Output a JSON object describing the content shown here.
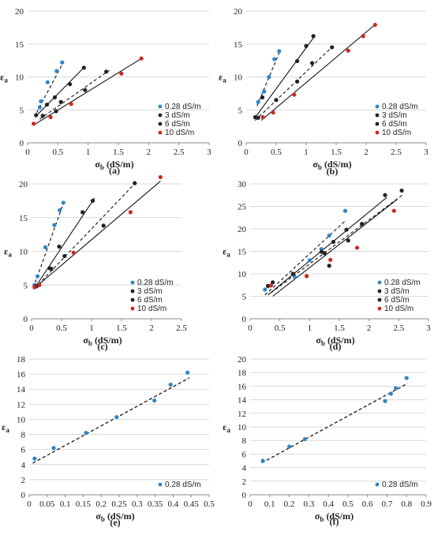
{
  "legend_values": {
    "a": "0.28 dS/m",
    "b": "3 dS/m",
    "c": "6 dS/m",
    "d": "10 dS/m",
    "c3": "3  dS/m",
    "c6": "6  dS/m",
    "c10": "10  dS/m"
  },
  "colors": {
    "s028": "#2e86c8",
    "s3": "#222222",
    "s6": "#222222",
    "s10": "#cc2a1e"
  },
  "chart_data": [
    {
      "panel": "(a)",
      "type": "scatter",
      "xlabel": "σb (dS/m)",
      "ylabel": "εa",
      "xlim": [
        0,
        3
      ],
      "ylim": [
        0,
        20
      ],
      "xticks": [
        0,
        0.5,
        1,
        1.5,
        2,
        2.5,
        3
      ],
      "yticks": [
        0,
        5,
        10,
        15,
        20
      ],
      "legend": "bottom-right",
      "series": [
        {
          "name": "0.28 dS/m",
          "color": "#2e86c8",
          "dash": "4,3",
          "points": [
            [
              0.2,
              5.4
            ],
            [
              0.22,
              6.3
            ],
            [
              0.33,
              9.2
            ],
            [
              0.48,
              10.9
            ],
            [
              0.57,
              12.2
            ]
          ],
          "fit": [
            [
              0.15,
              4.6
            ],
            [
              0.6,
              12.4
            ]
          ]
        },
        {
          "name": "3 dS/m",
          "color": "#222222",
          "dash": "",
          "points": [
            [
              0.14,
              4.2
            ],
            [
              0.32,
              5.8
            ],
            [
              0.45,
              6.9
            ],
            [
              0.7,
              8.9
            ],
            [
              0.93,
              11.4
            ]
          ],
          "fit": [
            [
              0.12,
              3.9
            ],
            [
              0.95,
              11.6
            ]
          ]
        },
        {
          "name": "6 dS/m",
          "color": "#222222",
          "dash": "4,3",
          "points": [
            [
              0.25,
              4.1
            ],
            [
              0.47,
              4.8
            ],
            [
              0.55,
              6.2
            ],
            [
              0.95,
              8.0
            ],
            [
              1.3,
              10.8
            ]
          ],
          "fit": [
            [
              0.2,
              3.6
            ],
            [
              1.35,
              11.0
            ]
          ]
        },
        {
          "name": "10 dS/m",
          "color": "#cc2a1e",
          "dash": "",
          "points": [
            [
              0.1,
              2.9
            ],
            [
              0.38,
              3.9
            ],
            [
              0.72,
              5.9
            ],
            [
              1.55,
              10.5
            ],
            [
              1.88,
              12.8
            ]
          ],
          "fit": [
            [
              0.1,
              2.7
            ],
            [
              1.9,
              12.9
            ]
          ]
        }
      ]
    },
    {
      "panel": "(b)",
      "type": "scatter",
      "xlabel": "σb (dS/m)",
      "ylabel": "εa",
      "xlim": [
        0,
        3
      ],
      "ylim": [
        0,
        20
      ],
      "xticks": [
        0,
        0.5,
        1,
        1.5,
        2,
        2.5,
        3
      ],
      "yticks": [
        0,
        5,
        10,
        15,
        20
      ],
      "legend": "bottom-right",
      "series": [
        {
          "name": "0.28 dS/m",
          "color": "#2e86c8",
          "dash": "4,3",
          "points": [
            [
              0.2,
              6.2
            ],
            [
              0.3,
              7.8
            ],
            [
              0.38,
              10.0
            ],
            [
              0.47,
              12.7
            ],
            [
              0.55,
              13.9
            ]
          ],
          "fit": [
            [
              0.18,
              5.6
            ],
            [
              0.57,
              14.1
            ]
          ]
        },
        {
          "name": "3 dS/m",
          "color": "#222222",
          "dash": "",
          "points": [
            [
              0.15,
              3.9
            ],
            [
              0.27,
              6.9
            ],
            [
              0.85,
              12.4
            ],
            [
              1.0,
              14.7
            ],
            [
              1.12,
              16.2
            ]
          ],
          "fit": [
            [
              0.13,
              3.6
            ],
            [
              1.15,
              16.3
            ]
          ]
        },
        {
          "name": "6 dS/m",
          "color": "#222222",
          "dash": "4,3",
          "points": [
            [
              0.2,
              3.8
            ],
            [
              0.5,
              6.5
            ],
            [
              0.85,
              9.3
            ],
            [
              1.1,
              12.1
            ],
            [
              1.43,
              14.5
            ]
          ],
          "fit": [
            [
              0.15,
              3.4
            ],
            [
              1.45,
              14.7
            ]
          ]
        },
        {
          "name": "10 dS/m",
          "color": "#cc2a1e",
          "dash": "",
          "points": [
            [
              0.28,
              3.9
            ],
            [
              0.45,
              4.6
            ],
            [
              0.8,
              7.3
            ],
            [
              1.7,
              14.0
            ],
            [
              1.95,
              16.2
            ],
            [
              2.15,
              17.9
            ]
          ],
          "fit": [
            [
              0.25,
              3.4
            ],
            [
              2.17,
              18.1
            ]
          ]
        }
      ]
    },
    {
      "panel": "(c)",
      "type": "scatter",
      "xlabel": "σb (dS/m)",
      "ylabel": "εa",
      "xlim": [
        0,
        2.5
      ],
      "ylim": [
        0,
        20
      ],
      "xticks": [
        0,
        0.5,
        1,
        1.5,
        2,
        2.5
      ],
      "yticks": [
        0,
        5,
        10,
        15,
        20
      ],
      "legend": "bottom-right",
      "series": [
        {
          "name": "0.28 dS/m",
          "color": "#2e86c8",
          "dash": "4,3",
          "points": [
            [
              0.05,
              5.0
            ],
            [
              0.1,
              6.3
            ],
            [
              0.23,
              10.6
            ],
            [
              0.38,
              13.9
            ],
            [
              0.47,
              16.1
            ],
            [
              0.53,
              17.2
            ]
          ],
          "fit": [
            [
              0.03,
              4.6
            ],
            [
              0.55,
              17.6
            ]
          ]
        },
        {
          "name": "3  dS/m",
          "color": "#222222",
          "dash": "",
          "points": [
            [
              0.06,
              4.8
            ],
            [
              0.3,
              7.5
            ],
            [
              0.46,
              10.7
            ],
            [
              0.85,
              15.8
            ],
            [
              1.02,
              17.5
            ]
          ],
          "fit": [
            [
              0.04,
              4.4
            ],
            [
              1.05,
              17.9
            ]
          ]
        },
        {
          "name": "6  dS/m",
          "color": "#222222",
          "dash": "4,3",
          "points": [
            [
              0.08,
              4.8
            ],
            [
              0.33,
              7.4
            ],
            [
              0.55,
              9.3
            ],
            [
              1.2,
              13.8
            ],
            [
              1.72,
              20.1
            ]
          ],
          "fit": [
            [
              0.05,
              4.5
            ],
            [
              1.75,
              20.3
            ]
          ]
        },
        {
          "name": "10  dS/m",
          "color": "#cc2a1e",
          "dash": "",
          "points": [
            [
              0.05,
              4.7
            ],
            [
              0.13,
              5.0
            ],
            [
              0.7,
              9.8
            ],
            [
              1.65,
              15.8
            ],
            [
              2.15,
              21.0
            ]
          ],
          "fit": [
            [
              0.03,
              4.4
            ],
            [
              2.15,
              20.4
            ]
          ]
        }
      ]
    },
    {
      "panel": "(d)",
      "type": "scatter",
      "xlabel": "σb (dS/m)",
      "ylabel": "εa",
      "xlim": [
        0,
        3
      ],
      "ylim": [
        0,
        30
      ],
      "xticks": [
        0,
        0.5,
        1,
        1.5,
        2,
        2.5,
        3
      ],
      "yticks": [
        0,
        5,
        10,
        15,
        20,
        25,
        30
      ],
      "legend": "bottom-right",
      "series": [
        {
          "name": "0.28 dS/m",
          "color": "#2e86c8",
          "dash": "4,3",
          "points": [
            [
              0.25,
              6.5
            ],
            [
              0.75,
              9.3
            ],
            [
              1.0,
              13.0
            ],
            [
              1.2,
              15.5
            ],
            [
              1.33,
              18.5
            ],
            [
              1.6,
              24.0
            ]
          ],
          "fit": [
            [
              0.25,
              5.3
            ],
            [
              1.62,
              22.0
            ]
          ]
        },
        {
          "name": "3  dS/m",
          "color": "#222222",
          "dash": "",
          "points": [
            [
              0.3,
              7.3
            ],
            [
              0.72,
              10.0
            ],
            [
              1.2,
              14.9
            ],
            [
              1.4,
              17.1
            ],
            [
              1.62,
              19.8
            ],
            [
              2.27,
              27.5
            ]
          ],
          "fit": [
            [
              0.3,
              5.3
            ],
            [
              2.3,
              27.0
            ]
          ]
        },
        {
          "name": "6  dS/m",
          "color": "#222222",
          "dash": "4,3",
          "points": [
            [
              0.38,
              8.1
            ],
            [
              1.25,
              14.6
            ],
            [
              1.33,
              11.8
            ],
            [
              1.65,
              17.4
            ],
            [
              1.88,
              21.1
            ],
            [
              2.55,
              28.5
            ]
          ],
          "fit": [
            [
              0.35,
              5.8
            ],
            [
              2.58,
              27.7
            ]
          ]
        },
        {
          "name": "10  dS/m",
          "color": "#cc2a1e",
          "dash": "",
          "points": [
            [
              0.35,
              7.4
            ],
            [
              0.95,
              9.5
            ],
            [
              1.35,
              13.1
            ],
            [
              1.8,
              15.8
            ],
            [
              2.42,
              24.0
            ]
          ],
          "fit": [
            [
              0.38,
              5.0
            ],
            [
              2.47,
              26.5
            ]
          ]
        }
      ]
    },
    {
      "panel": "(e)",
      "type": "scatter",
      "xlabel": "σb (dS/m)",
      "ylabel": "εa",
      "xlim": [
        0,
        0.5
      ],
      "ylim": [
        0,
        18
      ],
      "xticks": [
        0,
        0.05,
        0.1,
        0.15,
        0.2,
        0.25,
        0.3,
        0.35,
        0.4,
        0.45,
        0.5
      ],
      "yticks": [
        0,
        2,
        4,
        6,
        8,
        10,
        12,
        14,
        16,
        18
      ],
      "legend": "bottom-right",
      "series": [
        {
          "name": "0.28 dS/m",
          "color": "#2e86c8",
          "dash": "4,3",
          "points": [
            [
              0.015,
              4.8
            ],
            [
              0.068,
              6.2
            ],
            [
              0.158,
              8.2
            ],
            [
              0.243,
              10.3
            ],
            [
              0.348,
              12.5
            ],
            [
              0.393,
              14.6
            ],
            [
              0.44,
              16.2
            ]
          ],
          "fit": [
            [
              0.01,
              4.2
            ],
            [
              0.445,
              15.5
            ]
          ]
        },
        {
          "name": "",
          "color": "#222222",
          "dash": "4,3",
          "points": [],
          "fit": [
            [
              0.01,
              4.2
            ],
            [
              0.445,
              15.5
            ]
          ]
        }
      ]
    },
    {
      "panel": "(f)",
      "type": "scatter",
      "xlabel": "σb (dS/m)",
      "ylabel": "εa",
      "xlim": [
        0,
        0.9
      ],
      "ylim": [
        0,
        20
      ],
      "xticks": [
        0,
        0.1,
        0.2,
        0.3,
        0.4,
        0.5,
        0.6,
        0.7,
        0.8,
        0.9
      ],
      "yticks": [
        0,
        2,
        4,
        6,
        8,
        10,
        12,
        14,
        16,
        18,
        20
      ],
      "legend": "bottom-right",
      "series": [
        {
          "name": "0.28 dS/m",
          "color": "#2e86c8",
          "dash": "4,3",
          "points": [
            [
              0.065,
              5.0
            ],
            [
              0.2,
              7.1
            ],
            [
              0.28,
              8.2
            ],
            [
              0.69,
              13.8
            ],
            [
              0.72,
              14.9
            ],
            [
              0.745,
              15.7
            ],
            [
              0.8,
              17.2
            ]
          ],
          "fit": [
            [
              0.06,
              4.7
            ],
            [
              0.805,
              16.4
            ]
          ]
        },
        {
          "name": "",
          "color": "#222222",
          "dash": "4,3",
          "points": [],
          "fit": [
            [
              0.06,
              4.7
            ],
            [
              0.805,
              16.4
            ]
          ]
        }
      ]
    }
  ]
}
